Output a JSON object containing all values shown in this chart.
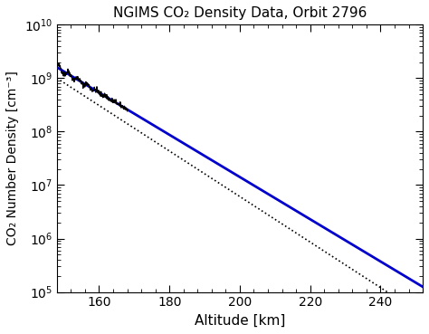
{
  "title": "NGIMS CO₂ Density Data, Orbit 2796",
  "xlabel": "Altitude [km]",
  "ylabel": "CO₂ Number Density [cm⁻³]",
  "xlim": [
    148,
    252
  ],
  "ylim": [
    100000.0,
    10000000000.0
  ],
  "x_ticks": [
    160,
    180,
    200,
    220,
    240
  ],
  "alt_min": 148,
  "alt_max": 252,
  "blue_n_at_148": 1600000000.0,
  "blue_scale_height": 11.0,
  "dot_n_at_148": 1000000000.0,
  "dot_scale_height": 10.2,
  "noisy_alt_min": 148,
  "noisy_alt_max": 168,
  "noisy_n_at_148": 1600000000.0,
  "noisy_scale_height": 11.0,
  "noise_amplitude": 0.15,
  "noise_freq": 1.5,
  "blue_color": "#0000cc",
  "black_color": "#000000",
  "noise_seed": 42,
  "figsize": [
    4.74,
    3.69
  ],
  "dpi": 100
}
